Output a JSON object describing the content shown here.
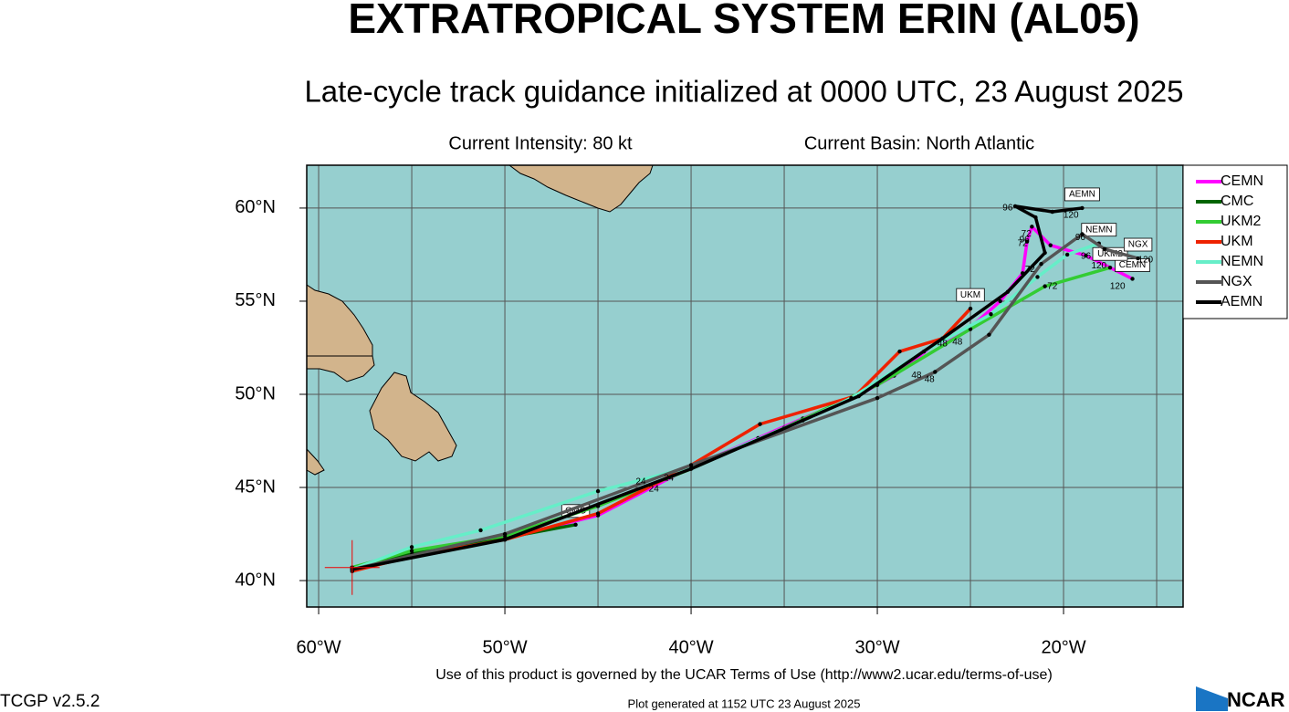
{
  "chart_data": {
    "type": "track",
    "title": "EXTRATROPICAL SYSTEM ERIN (AL05)",
    "subtitle": "Late-cycle track guidance initialized at 0000 UTC, 23 August 2025",
    "intensity": "Current Intensity: 80 kt",
    "basin": "Current Basin: North Atlantic",
    "footer": "Use of this product is governed by the UCAR Terms of Use (http://www2.ucar.edu/terms-of-use)",
    "version": "TCGP v2.5.2",
    "generated": "Plot generated at 1152 UTC   23 August 2025",
    "logo": "NCAR",
    "xlim": [
      -60.64,
      -13.58
    ],
    "ylim": [
      38.58,
      62.3
    ],
    "xticks": [
      {
        "value": -60,
        "label": "60°W"
      },
      {
        "value": -50,
        "label": "50°W"
      },
      {
        "value": -40,
        "label": "40°W"
      },
      {
        "value": -30,
        "label": "30°W"
      },
      {
        "value": -20,
        "label": "20°W"
      }
    ],
    "yticks": [
      {
        "value": 40,
        "label": "40°N"
      },
      {
        "value": 45,
        "label": "45°N"
      },
      {
        "value": 50,
        "label": "50°N"
      },
      {
        "value": 55,
        "label": "55°N"
      },
      {
        "value": 60,
        "label": "60°N"
      }
    ],
    "xgrid": [
      -60,
      -55,
      -50,
      -45,
      -40,
      -35,
      -30,
      -25,
      -20,
      -15
    ],
    "ygrid": [
      40,
      45,
      50,
      55,
      60
    ],
    "grid": true,
    "legend": "right",
    "initial": {
      "lon": -58.2,
      "lat": 40.7
    },
    "series": [
      {
        "name": "CEMN",
        "color": "#ff00ff",
        "x": [
          -58.2,
          -55.05,
          -50,
          -45,
          -40,
          -36.4,
          -34,
          -31.3,
          -29.1,
          -27.1,
          -25.1,
          -23.4,
          -22.2,
          -21.96,
          -21.7,
          -20.7,
          -18.8,
          -16.3
        ],
        "values": [
          40.7,
          41.5,
          42.25,
          43.5,
          46.1,
          47.65,
          48.7,
          49.8,
          51.0,
          52.55,
          53.5,
          55.0,
          56.5,
          58.2,
          59.0,
          58.0,
          57.45,
          56.2
        ]
      },
      {
        "name": "CMC",
        "color": "#006400",
        "x": [
          -58.2,
          -55,
          -50,
          -46.2
        ],
        "values": [
          40.7,
          41.5,
          42.3,
          43.0
        ]
      },
      {
        "name": "UKM2",
        "color": "#33cc33",
        "x": [
          -58.2,
          -55,
          -50,
          -45,
          -40,
          -35,
          -30,
          -25,
          -21,
          -17.5
        ],
        "values": [
          40.7,
          41.6,
          42.4,
          44.0,
          46.0,
          48.2,
          50.5,
          53.5,
          55.8,
          56.8
        ]
      },
      {
        "name": "UKM",
        "color": "#ee2200",
        "x": [
          -58.2,
          -55,
          -50,
          -45,
          -40,
          -36.3,
          -31.2,
          -28.8,
          -26.5,
          -25
        ],
        "values": [
          40.5,
          41.3,
          42.2,
          43.6,
          46.2,
          48.4,
          49.9,
          52.3,
          53.0,
          54.6
        ]
      },
      {
        "name": "NEMN",
        "color": "#66eec8",
        "x": [
          -58.2,
          -55,
          -51.3,
          -45,
          -40,
          -34,
          -31.4,
          -27.5,
          -23.9,
          -21.4,
          -19.8,
          -18.1
        ],
        "values": [
          40.6,
          41.8,
          42.7,
          44.8,
          46.1,
          48.6,
          49.8,
          52.3,
          54.3,
          56.3,
          57.5,
          58.1
        ]
      },
      {
        "name": "NGX",
        "color": "#555555",
        "x": [
          -58.2,
          -50,
          -40,
          -30,
          -26.9,
          -24,
          -21.2,
          -19.0,
          -17.8,
          -16.0
        ],
        "values": [
          40.6,
          42.5,
          46.2,
          49.8,
          51.2,
          53.2,
          57.0,
          58.6,
          57.8,
          57.3
        ]
      },
      {
        "name": "AEMN",
        "color": "#000000",
        "x": [
          -58.2,
          -50,
          -40,
          -31.0,
          -26.5,
          -23,
          -21.0,
          -21.5,
          -22.6,
          -20.6,
          -19.0
        ],
        "values": [
          40.6,
          42.2,
          46.0,
          49.9,
          53.0,
          55.5,
          57.6,
          59.5,
          60.1,
          59.8,
          60.0
        ]
      }
    ],
    "hour_labels": [
      {
        "text": "24",
        "lon": -42.7,
        "lat": 45.3
      },
      {
        "text": "24",
        "lon": -42.0,
        "lat": 44.9
      },
      {
        "text": "24",
        "lon": -41.2,
        "lat": 45.5
      },
      {
        "text": "48",
        "lon": -27.9,
        "lat": 51.0
      },
      {
        "text": "48",
        "lon": -27.2,
        "lat": 50.8
      },
      {
        "text": "48",
        "lon": -26.5,
        "lat": 52.7
      },
      {
        "text": "48",
        "lon": -25.7,
        "lat": 52.8
      },
      {
        "text": "72",
        "lon": -21.8,
        "lat": 56.7
      },
      {
        "text": "72",
        "lon": -20.6,
        "lat": 55.8
      },
      {
        "text": "72",
        "lon": -22.0,
        "lat": 58.6
      },
      {
        "text": "72",
        "lon": -22.2,
        "lat": 58.1
      },
      {
        "text": "96",
        "lon": -23.0,
        "lat": 60.0
      },
      {
        "text": "96",
        "lon": -22.1,
        "lat": 58.3
      },
      {
        "text": "96",
        "lon": -19.1,
        "lat": 58.4
      },
      {
        "text": "96",
        "lon": -18.8,
        "lat": 57.4
      },
      {
        "text": "120",
        "lon": -19.6,
        "lat": 59.6
      },
      {
        "text": "120",
        "lon": -18.1,
        "lat": 56.9
      },
      {
        "text": "120",
        "lon": -15.6,
        "lat": 57.2
      },
      {
        "text": "120",
        "lon": -17.1,
        "lat": 55.8
      }
    ]
  }
}
